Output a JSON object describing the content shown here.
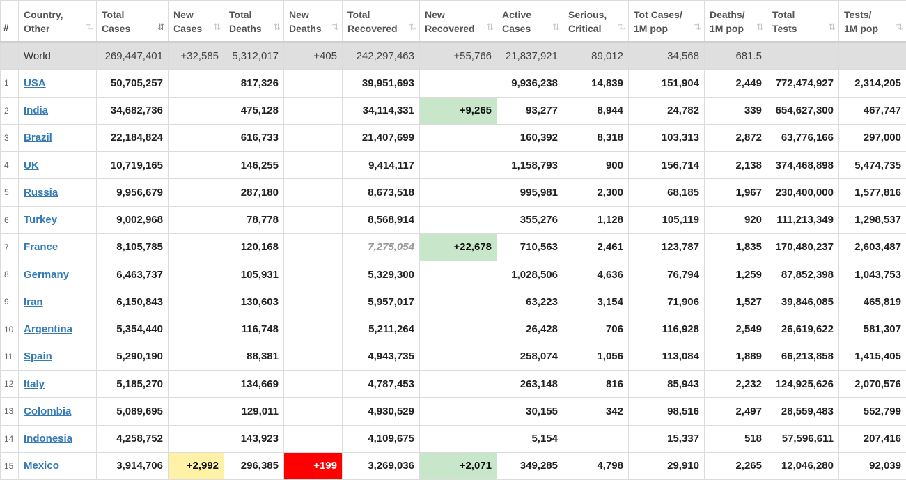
{
  "headers": [
    {
      "key": "idx",
      "line1": "#",
      "line2": "",
      "sort": ""
    },
    {
      "key": "country",
      "line1": "Country,",
      "line2": "Other",
      "sort": "⇅"
    },
    {
      "key": "total_cases",
      "line1": "Total",
      "line2": "Cases",
      "sort": "⇵"
    },
    {
      "key": "new_cases",
      "line1": "New",
      "line2": "Cases",
      "sort": "⇅"
    },
    {
      "key": "total_deaths",
      "line1": "Total",
      "line2": "Deaths",
      "sort": "⇅"
    },
    {
      "key": "new_deaths",
      "line1": "New",
      "line2": "Deaths",
      "sort": "⇅"
    },
    {
      "key": "total_recovered",
      "line1": "Total",
      "line2": "Recovered",
      "sort": "⇅"
    },
    {
      "key": "new_recovered",
      "line1": "New",
      "line2": "Recovered",
      "sort": "⇅"
    },
    {
      "key": "active_cases",
      "line1": "Active",
      "line2": "Cases",
      "sort": "⇅"
    },
    {
      "key": "serious_critical",
      "line1": "Serious,",
      "line2": "Critical",
      "sort": "⇅"
    },
    {
      "key": "tot_cases_1m",
      "line1": "Tot Cases/",
      "line2": "1M pop",
      "sort": "⇅"
    },
    {
      "key": "deaths_1m",
      "line1": "Deaths/",
      "line2": "1M pop",
      "sort": "⇅"
    },
    {
      "key": "total_tests",
      "line1": "Total",
      "line2": "Tests",
      "sort": "⇅"
    },
    {
      "key": "tests_1m",
      "line1": "Tests/",
      "line2": "1M pop",
      "sort": "⇅"
    }
  ],
  "world": {
    "idx": "",
    "country": "World",
    "total_cases": "269,447,401",
    "new_cases": "+32,585",
    "total_deaths": "5,312,017",
    "new_deaths": "+405",
    "total_recovered": "242,297,463",
    "new_recovered": "+55,766",
    "active_cases": "21,837,921",
    "serious_critical": "89,012",
    "tot_cases_1m": "34,568",
    "deaths_1m": "681.5",
    "total_tests": "",
    "tests_1m": ""
  },
  "rows": [
    {
      "idx": "1",
      "country": "USA",
      "total_cases": "50,705,257",
      "new_cases": "",
      "total_deaths": "817,326",
      "new_deaths": "",
      "total_recovered": "39,951,693",
      "new_recovered": "",
      "active_cases": "9,936,238",
      "serious_critical": "14,839",
      "tot_cases_1m": "151,904",
      "deaths_1m": "2,449",
      "total_tests": "772,474,927",
      "tests_1m": "2,314,205"
    },
    {
      "idx": "2",
      "country": "India",
      "total_cases": "34,682,736",
      "new_cases": "",
      "total_deaths": "475,128",
      "new_deaths": "",
      "total_recovered": "34,114,331",
      "new_recovered": "+9,265",
      "active_cases": "93,277",
      "serious_critical": "8,944",
      "tot_cases_1m": "24,782",
      "deaths_1m": "339",
      "total_tests": "654,627,300",
      "tests_1m": "467,747"
    },
    {
      "idx": "3",
      "country": "Brazil",
      "total_cases": "22,184,824",
      "new_cases": "",
      "total_deaths": "616,733",
      "new_deaths": "",
      "total_recovered": "21,407,699",
      "new_recovered": "",
      "active_cases": "160,392",
      "serious_critical": "8,318",
      "tot_cases_1m": "103,313",
      "deaths_1m": "2,872",
      "total_tests": "63,776,166",
      "tests_1m": "297,000"
    },
    {
      "idx": "4",
      "country": "UK",
      "total_cases": "10,719,165",
      "new_cases": "",
      "total_deaths": "146,255",
      "new_deaths": "",
      "total_recovered": "9,414,117",
      "new_recovered": "",
      "active_cases": "1,158,793",
      "serious_critical": "900",
      "tot_cases_1m": "156,714",
      "deaths_1m": "2,138",
      "total_tests": "374,468,898",
      "tests_1m": "5,474,735"
    },
    {
      "idx": "5",
      "country": "Russia",
      "total_cases": "9,956,679",
      "new_cases": "",
      "total_deaths": "287,180",
      "new_deaths": "",
      "total_recovered": "8,673,518",
      "new_recovered": "",
      "active_cases": "995,981",
      "serious_critical": "2,300",
      "tot_cases_1m": "68,185",
      "deaths_1m": "1,967",
      "total_tests": "230,400,000",
      "tests_1m": "1,577,816"
    },
    {
      "idx": "6",
      "country": "Turkey",
      "total_cases": "9,002,968",
      "new_cases": "",
      "total_deaths": "78,778",
      "new_deaths": "",
      "total_recovered": "8,568,914",
      "new_recovered": "",
      "active_cases": "355,276",
      "serious_critical": "1,128",
      "tot_cases_1m": "105,119",
      "deaths_1m": "920",
      "total_tests": "111,213,349",
      "tests_1m": "1,298,537"
    },
    {
      "idx": "7",
      "country": "France",
      "total_cases": "8,105,785",
      "new_cases": "",
      "total_deaths": "120,168",
      "new_deaths": "",
      "total_recovered": "7,275,054",
      "new_recovered": "+22,678",
      "active_cases": "710,563",
      "serious_critical": "2,461",
      "tot_cases_1m": "123,787",
      "deaths_1m": "1,835",
      "total_tests": "170,480,237",
      "tests_1m": "2,603,487"
    },
    {
      "idx": "8",
      "country": "Germany",
      "total_cases": "6,463,737",
      "new_cases": "",
      "total_deaths": "105,931",
      "new_deaths": "",
      "total_recovered": "5,329,300",
      "new_recovered": "",
      "active_cases": "1,028,506",
      "serious_critical": "4,636",
      "tot_cases_1m": "76,794",
      "deaths_1m": "1,259",
      "total_tests": "87,852,398",
      "tests_1m": "1,043,753"
    },
    {
      "idx": "9",
      "country": "Iran",
      "total_cases": "6,150,843",
      "new_cases": "",
      "total_deaths": "130,603",
      "new_deaths": "",
      "total_recovered": "5,957,017",
      "new_recovered": "",
      "active_cases": "63,223",
      "serious_critical": "3,154",
      "tot_cases_1m": "71,906",
      "deaths_1m": "1,527",
      "total_tests": "39,846,085",
      "tests_1m": "465,819"
    },
    {
      "idx": "10",
      "country": "Argentina",
      "total_cases": "5,354,440",
      "new_cases": "",
      "total_deaths": "116,748",
      "new_deaths": "",
      "total_recovered": "5,211,264",
      "new_recovered": "",
      "active_cases": "26,428",
      "serious_critical": "706",
      "tot_cases_1m": "116,928",
      "deaths_1m": "2,549",
      "total_tests": "26,619,622",
      "tests_1m": "581,307"
    },
    {
      "idx": "11",
      "country": "Spain",
      "total_cases": "5,290,190",
      "new_cases": "",
      "total_deaths": "88,381",
      "new_deaths": "",
      "total_recovered": "4,943,735",
      "new_recovered": "",
      "active_cases": "258,074",
      "serious_critical": "1,056",
      "tot_cases_1m": "113,084",
      "deaths_1m": "1,889",
      "total_tests": "66,213,858",
      "tests_1m": "1,415,405"
    },
    {
      "idx": "12",
      "country": "Italy",
      "total_cases": "5,185,270",
      "new_cases": "",
      "total_deaths": "134,669",
      "new_deaths": "",
      "total_recovered": "4,787,453",
      "new_recovered": "",
      "active_cases": "263,148",
      "serious_critical": "816",
      "tot_cases_1m": "85,943",
      "deaths_1m": "2,232",
      "total_tests": "124,925,626",
      "tests_1m": "2,070,576"
    },
    {
      "idx": "13",
      "country": "Colombia",
      "total_cases": "5,089,695",
      "new_cases": "",
      "total_deaths": "129,011",
      "new_deaths": "",
      "total_recovered": "4,930,529",
      "new_recovered": "",
      "active_cases": "30,155",
      "serious_critical": "342",
      "tot_cases_1m": "98,516",
      "deaths_1m": "2,497",
      "total_tests": "28,559,483",
      "tests_1m": "552,799"
    },
    {
      "idx": "14",
      "country": "Indonesia",
      "total_cases": "4,258,752",
      "new_cases": "",
      "total_deaths": "143,923",
      "new_deaths": "",
      "total_recovered": "4,109,675",
      "new_recovered": "",
      "active_cases": "5,154",
      "serious_critical": "",
      "tot_cases_1m": "15,337",
      "deaths_1m": "518",
      "total_tests": "57,596,611",
      "tests_1m": "207,416"
    },
    {
      "idx": "15",
      "country": "Mexico",
      "total_cases": "3,914,706",
      "new_cases": "+2,992",
      "total_deaths": "296,385",
      "new_deaths": "+199",
      "total_recovered": "3,269,036",
      "new_recovered": "+2,071",
      "active_cases": "349,285",
      "serious_critical": "4,798",
      "tot_cases_1m": "29,910",
      "deaths_1m": "2,265",
      "total_tests": "12,046,280",
      "tests_1m": "92,039"
    }
  ],
  "colors": {
    "new_cases_bg": "#fff1a6",
    "new_deaths_bg": "#ff0000",
    "new_recovered_bg": "#c8e6c9",
    "link": "#337ab7",
    "world_row_bg": "#dfdfdf"
  }
}
